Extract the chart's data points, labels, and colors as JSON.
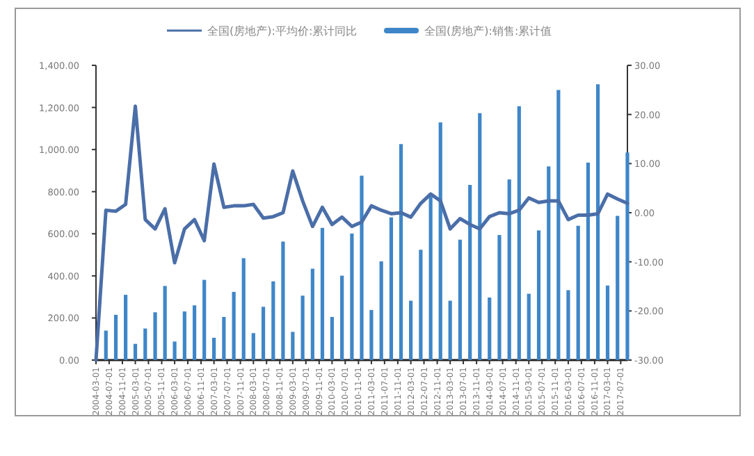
{
  "chart_data": {
    "type": "bar",
    "legend": "top",
    "x": [
      "2004-03",
      "2004-06",
      "2004-09",
      "2004-12",
      "2005-03",
      "2005-06",
      "2005-09",
      "2005-12",
      "2006-03",
      "2006-06",
      "2006-09",
      "2006-12",
      "2007-03",
      "2007-06",
      "2007-09",
      "2007-12",
      "2008-03",
      "2008-06",
      "2008-09",
      "2008-12",
      "2009-03",
      "2009-06",
      "2009-09",
      "2009-12",
      "2010-03",
      "2010-06",
      "2010-09",
      "2010-12",
      "2011-03",
      "2011-06",
      "2011-09",
      "2011-12",
      "2012-03",
      "2012-06",
      "2012-09",
      "2012-12",
      "2013-03",
      "2013-06",
      "2013-09",
      "2013-12",
      "2014-03",
      "2014-06",
      "2014-09",
      "2014-12",
      "2015-03",
      "2015-06",
      "2015-09",
      "2015-12",
      "2016-03",
      "2016-06",
      "2016-09",
      "2016-12",
      "2017-03",
      "2017-06",
      "2017-09"
    ],
    "xlim": [
      "2004-03",
      "2017-09"
    ],
    "xticks": [
      "2004-03-01",
      "2004-07-01",
      "2004-11-01",
      "2005-03-01",
      "2005-07-01",
      "2005-11-01",
      "2006-03-01",
      "2006-07-01",
      "2006-11-01",
      "2007-03-01",
      "2007-07-01",
      "2007-11-01",
      "2008-03-01",
      "2008-07-01",
      "2008-11-01",
      "2009-03-01",
      "2009-07-01",
      "2009-11-01",
      "2010-03-01",
      "2010-07-01",
      "2010-11-01",
      "2011-03-01",
      "2011-07-01",
      "2011-11-01",
      "2012-03-01",
      "2012-07-01",
      "2012-11-01",
      "2013-03-01",
      "2013-07-01",
      "2013-11-01",
      "2014-03-01",
      "2014-07-01",
      "2014-11-01",
      "2015-03-01",
      "2015-07-01",
      "2015-11-01",
      "2016-03-01",
      "2016-07-01",
      "2016-11-01",
      "2017-03-01",
      "2017-07-01"
    ],
    "ylim": [
      0,
      1400
    ],
    "yticks": [
      {
        "value": 0,
        "label": "0.00"
      },
      {
        "value": 200,
        "label": "200.00"
      },
      {
        "value": 400,
        "label": "400.00"
      },
      {
        "value": 600,
        "label": "600.00"
      },
      {
        "value": 800,
        "label": "800.00"
      },
      {
        "value": 1000,
        "label": "1,000.00"
      },
      {
        "value": 1200,
        "label": "1,200.00"
      },
      {
        "value": 1400,
        "label": "1,400.00"
      }
    ],
    "y2lim": [
      -30,
      30
    ],
    "y2ticks": [
      {
        "value": -30,
        "label": "-30.00"
      },
      {
        "value": -20,
        "label": "-20.00"
      },
      {
        "value": -10,
        "label": "-10.00"
      },
      {
        "value": 0,
        "label": "0.00"
      },
      {
        "value": 10,
        "label": "10.00"
      },
      {
        "value": 20,
        "label": "20.00"
      },
      {
        "value": 30,
        "label": "30.00"
      }
    ],
    "series": [
      {
        "name": "全国(房地产):平均价:累计同比",
        "type": "line",
        "axis": "y2",
        "color": "#4a6ea8",
        "values": [
          -30,
          0.5,
          0.3,
          1.7,
          21.7,
          -1.4,
          -3.3,
          0.8,
          -10.2,
          -3.3,
          -1.4,
          -5.7,
          9.9,
          1.1,
          1.4,
          1.4,
          1.7,
          -1.1,
          -0.8,
          0,
          8.5,
          2.4,
          -2.8,
          1.1,
          -2.4,
          -0.9,
          -2.8,
          -1.9,
          1.4,
          0.5,
          -0.2,
          0,
          -0.9,
          1.9,
          3.8,
          2.4,
          -3.3,
          -1.2,
          -2.4,
          -3.3,
          -0.8,
          0,
          -0.2,
          0.5,
          3.0,
          2.1,
          2.4,
          2.4,
          -1.4,
          -0.5,
          -0.5,
          -0.2,
          3.8,
          2.8,
          1.9
        ]
      },
      {
        "name": "全国(房地产):销售:累计值",
        "color": "#3f86c8",
        "values": [
          null,
          140,
          215,
          310,
          77,
          150,
          227,
          352,
          88,
          231,
          260,
          381,
          106,
          205,
          324,
          484,
          128,
          253,
          374,
          563,
          134,
          306,
          434,
          628,
          205,
          401,
          601,
          876,
          238,
          469,
          678,
          1026,
          282,
          524,
          777,
          1129,
          282,
          572,
          832,
          1173,
          297,
          594,
          858,
          1206,
          315,
          616,
          920,
          1283,
          332,
          638,
          938,
          1310,
          354,
          685,
          986
        ]
      }
    ]
  }
}
